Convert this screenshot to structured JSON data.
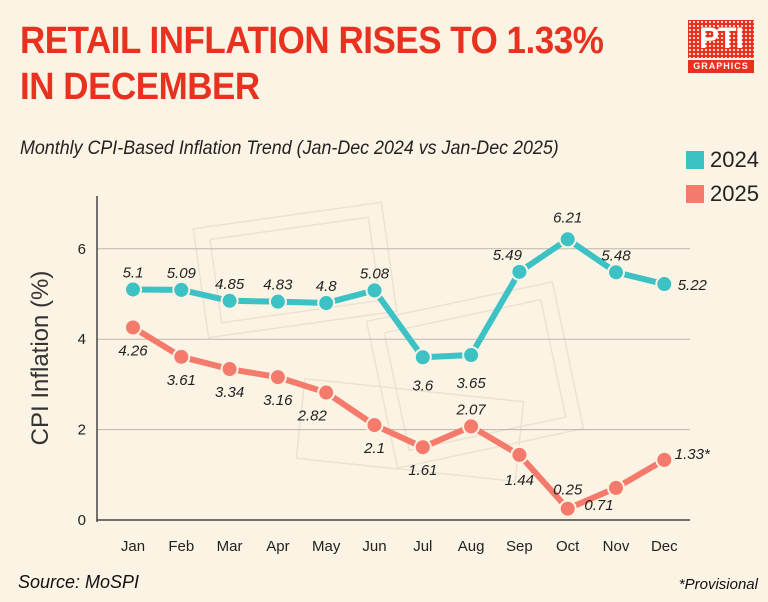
{
  "header": {
    "title_line1": "RETAIL INFLATION RISES TO 1.33%",
    "title_line2": "IN DECEMBER",
    "subtitle": "Monthly CPI-Based Inflation Trend (Jan-Dec 2024 vs Jan-Dec 2025)"
  },
  "logo": {
    "mark": "PTI",
    "sub": "GRAPHICS"
  },
  "footer": {
    "source": "Source: MoSPI",
    "note": "*Provisional"
  },
  "colors": {
    "series_2024": "#3CC1C4",
    "series_2025": "#F47A6B",
    "title": "#E8311F",
    "background": "#FBF3E4"
  },
  "chart_data": {
    "type": "line",
    "categories": [
      "Jan",
      "Feb",
      "Mar",
      "Apr",
      "May",
      "Jun",
      "Jul",
      "Aug",
      "Sep",
      "Oct",
      "Nov",
      "Dec"
    ],
    "ylabel": "CPI Inflation (%)",
    "xlabel": "",
    "ylim": [
      0,
      6.8
    ],
    "yticks": [
      0,
      2,
      4,
      6
    ],
    "grid": true,
    "legend_position": "top-right",
    "series": [
      {
        "name": "2024",
        "color": "#3CC1C4",
        "values": [
          5.1,
          5.09,
          4.85,
          4.83,
          4.8,
          5.08,
          3.6,
          3.65,
          5.49,
          6.21,
          5.48,
          5.22
        ],
        "labels": [
          "5.1",
          "5.09",
          "4.85",
          "4.83",
          "4.8",
          "5.08",
          "3.6",
          "3.65",
          "5.49",
          "6.21",
          "5.48",
          "5.22"
        ]
      },
      {
        "name": "2025",
        "color": "#F47A6B",
        "values": [
          4.26,
          3.61,
          3.34,
          3.16,
          2.82,
          2.1,
          1.61,
          2.07,
          1.44,
          0.25,
          0.71,
          1.33
        ],
        "labels": [
          "4.26",
          "3.61",
          "3.34",
          "3.16",
          "2.82",
          "2.1",
          "1.61",
          "2.07",
          "1.44",
          "0.25",
          "0.71",
          "1.33*"
        ]
      }
    ]
  }
}
